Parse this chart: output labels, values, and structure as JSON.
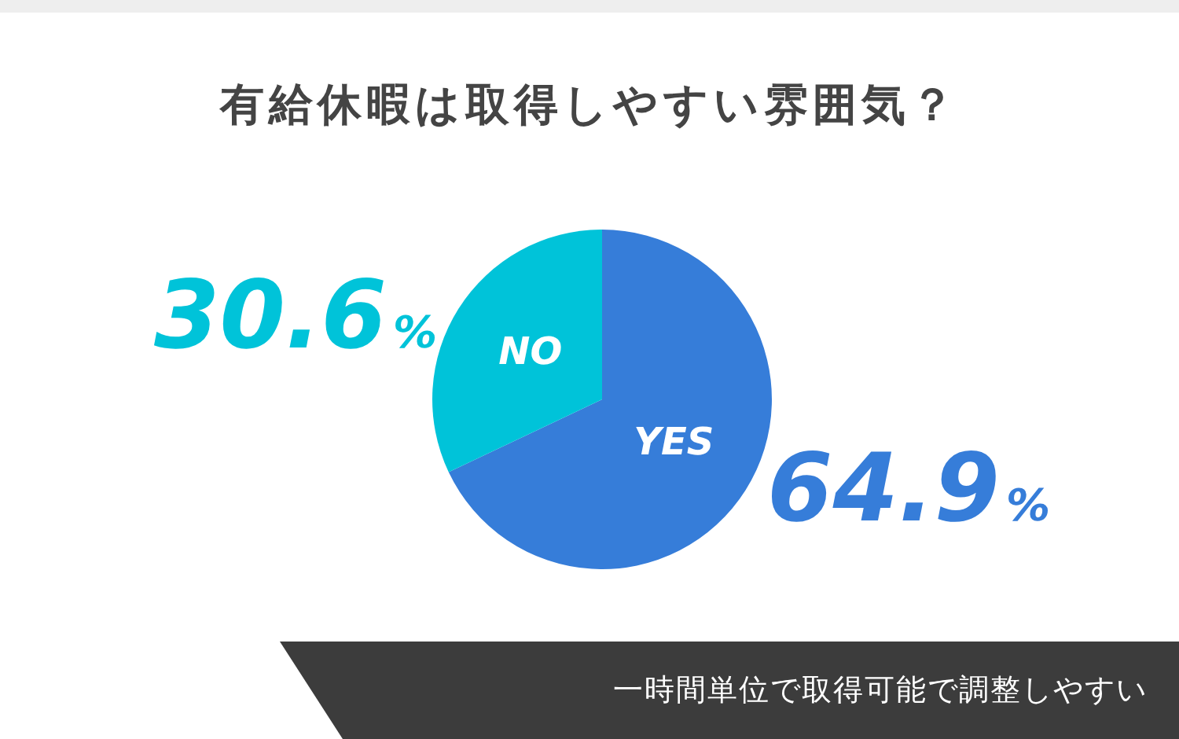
{
  "chart_data": {
    "type": "pie",
    "title": "有給休暇は取得しやすい雰囲気？",
    "categories": [
      "YES",
      "NO"
    ],
    "values": [
      64.9,
      30.6
    ],
    "colors": [
      "#367dd9",
      "#00c3d9"
    ],
    "value_labels": [
      "64.9%",
      "30.6%"
    ],
    "legend": false,
    "annotations": [
      "一時間単位で取得可能で調整しやすい"
    ]
  }
}
